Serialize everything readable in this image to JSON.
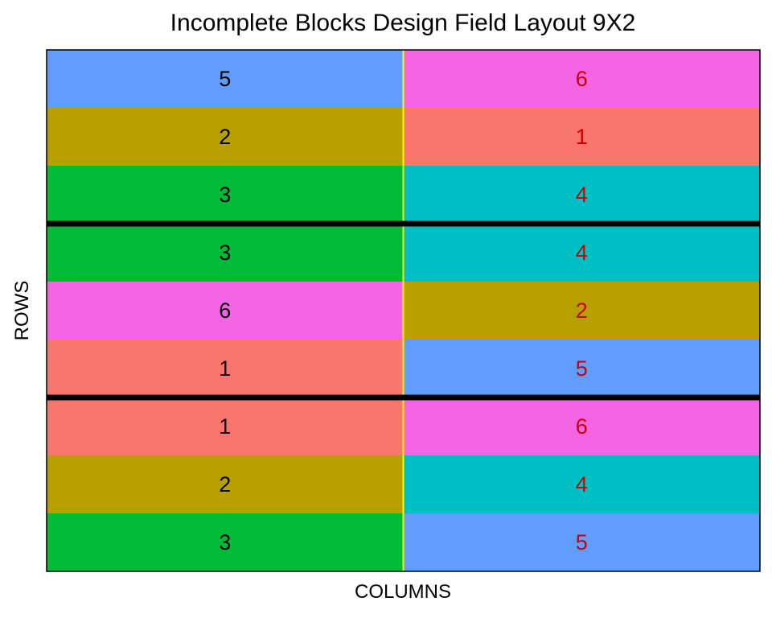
{
  "chart_data": {
    "type": "heatmap",
    "title": "Incomplete Blocks Design Field Layout 9X2",
    "xlabel": "COLUMNS",
    "ylabel": "ROWS",
    "n_rows": 9,
    "n_cols": 2,
    "block_size": 3,
    "cells": [
      [
        5,
        6
      ],
      [
        2,
        1
      ],
      [
        3,
        4
      ],
      [
        3,
        4
      ],
      [
        6,
        2
      ],
      [
        1,
        5
      ],
      [
        1,
        6
      ],
      [
        2,
        4
      ],
      [
        3,
        5
      ]
    ],
    "treatment_colors": {
      "1": "#F8766D",
      "2": "#B79F00",
      "3": "#00BA38",
      "4": "#00BFC4",
      "5": "#619CFF",
      "6": "#F564E3"
    },
    "label_colors": [
      "#000000",
      "#CC0000"
    ],
    "column_divider_color": "#FFFF00",
    "block_divider_color": "#000000"
  }
}
